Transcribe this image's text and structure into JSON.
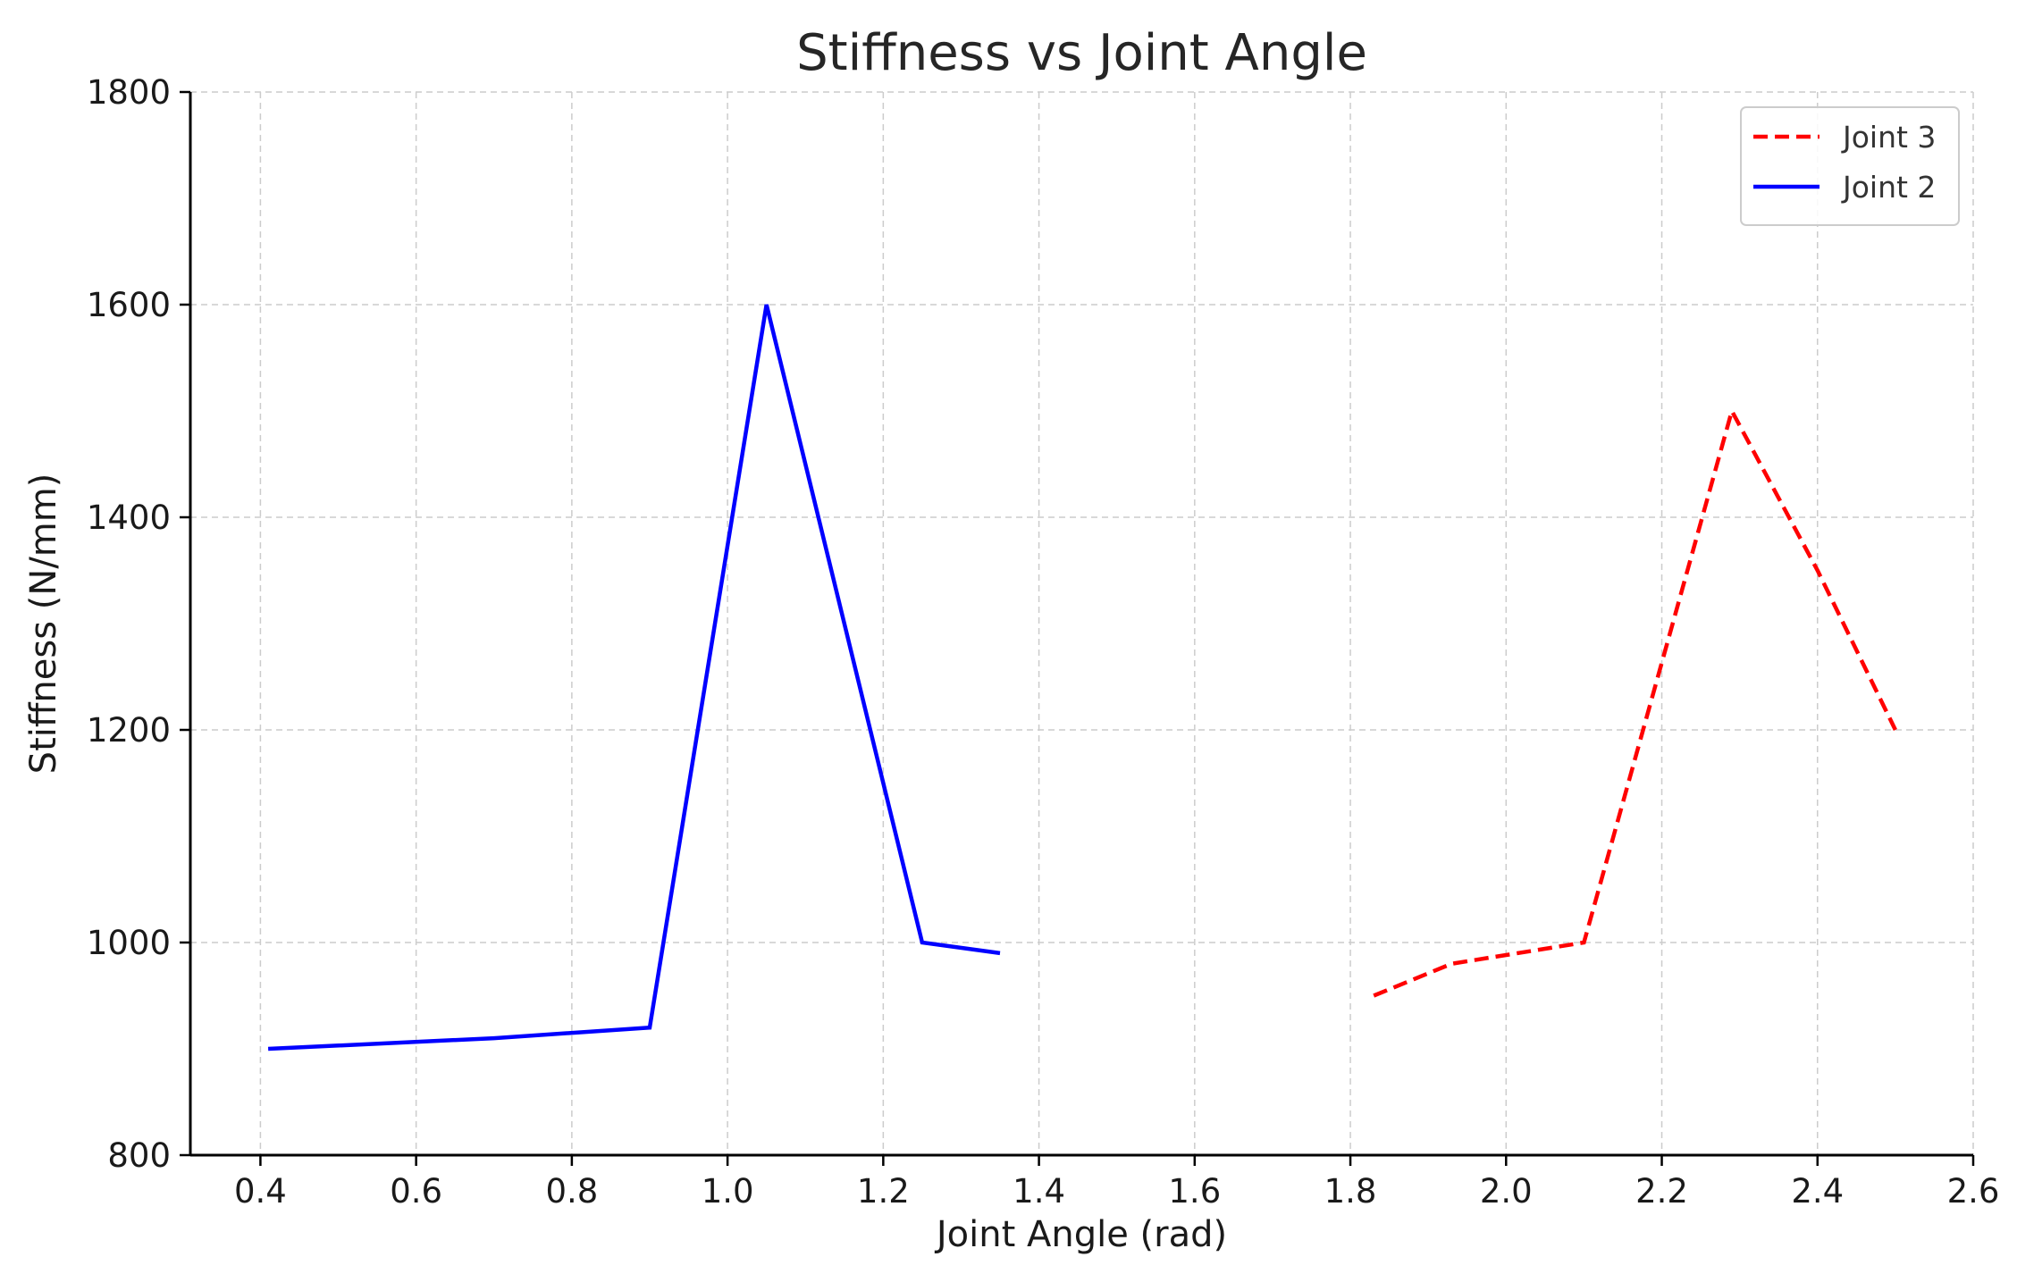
{
  "chart_data": {
    "type": "line",
    "title": "Stiffness vs Joint Angle",
    "xlabel": "Joint Angle (rad)",
    "ylabel": "Stiffness (N/mm)",
    "xlim": [
      0.31,
      2.6
    ],
    "ylim": [
      800,
      1800
    ],
    "xticks": [
      0.4,
      0.6,
      0.8,
      1.0,
      1.2,
      1.4,
      1.6,
      1.8,
      2.0,
      2.2,
      2.4,
      2.6
    ],
    "xtick_labels": [
      "0.4",
      "0.6",
      "0.8",
      "1.0",
      "1.2",
      "1.4",
      "1.6",
      "1.8",
      "2.0",
      "2.2",
      "2.4",
      "2.6"
    ],
    "yticks": [
      800,
      1000,
      1200,
      1400,
      1600,
      1800
    ],
    "ytick_labels": [
      "800",
      "1000",
      "1200",
      "1400",
      "1600",
      "1800"
    ],
    "grid": true,
    "legend_position": "top-right",
    "series": [
      {
        "name": "Joint 3",
        "color": "#ff0000",
        "style": "dashed",
        "x": [
          1.83,
          1.93,
          2.1,
          2.29,
          2.4,
          2.5
        ],
        "y": [
          950,
          980,
          1000,
          1500,
          1350,
          1200
        ]
      },
      {
        "name": "Joint 2",
        "color": "#0000ff",
        "style": "solid",
        "x": [
          0.41,
          0.7,
          0.9,
          1.05,
          1.25,
          1.35
        ],
        "y": [
          900,
          910,
          920,
          1600,
          1000,
          990
        ]
      }
    ]
  }
}
